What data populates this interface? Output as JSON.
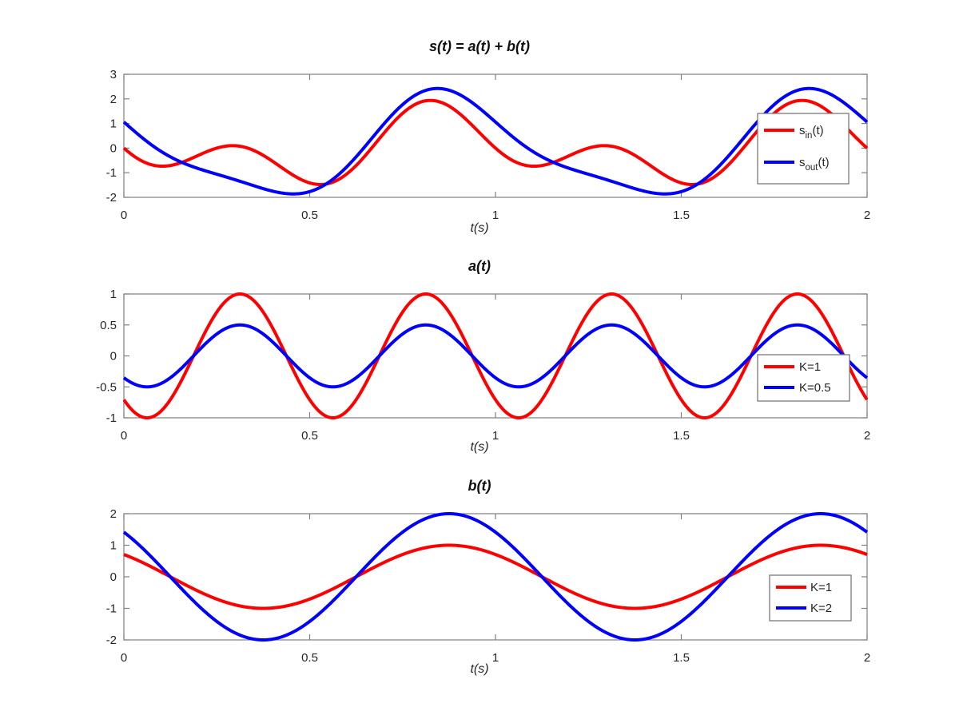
{
  "figure": {
    "background": "#ffffff",
    "kind": "matlab-style-figure",
    "subplot_count": 3
  },
  "styles": {
    "axis_color": "#808080",
    "tick_label_color": "#262626",
    "title_color": "#111111",
    "legend_border_color": "#7a7a7a",
    "legend_background": "#ffffff",
    "series_red": "#ff0000",
    "series_blue": "#0000ff"
  },
  "chart_data": [
    {
      "type": "line",
      "title": "s(t) = a(t) + b(t)",
      "xlabel": "t(s)",
      "ylabel": "",
      "xlim": [
        0,
        2
      ],
      "ylim": [
        -2,
        3
      ],
      "xticks": [
        0,
        0.5,
        1,
        1.5,
        2
      ],
      "xtick_labels": [
        "0",
        "0.5",
        "1",
        "1.5",
        "2"
      ],
      "yticks": [
        -2,
        -1,
        0,
        1,
        2,
        3
      ],
      "ytick_labels": [
        "-2",
        "-1",
        "0",
        "1",
        "2",
        "3"
      ],
      "grid": false,
      "legend_position": "right-middle-inside",
      "series": [
        {
          "name": "s_in(t)",
          "label_parts": [
            {
              "text": "s"
            },
            {
              "sub": "in"
            },
            {
              "text": "(t)"
            }
          ],
          "color": "#ff0000",
          "line_width": 4,
          "description": "sin(4*pi*t - 3*pi/4) + sin(2*pi*t + 3*pi/4)",
          "components": [
            {
              "amplitude": 1,
              "frequency_hz": 2,
              "phase_rad": -2.35619449
            },
            {
              "amplitude": 1,
              "frequency_hz": 1,
              "phase_rad": 2.35619449
            }
          ]
        },
        {
          "name": "s_out(t)",
          "label_parts": [
            {
              "text": "s"
            },
            {
              "sub": "out"
            },
            {
              "text": "(t)"
            }
          ],
          "color": "#0000ff",
          "line_width": 4,
          "description": "0.5*sin(4*pi*t - 3*pi/4) + 2*sin(2*pi*t + 3*pi/4)",
          "components": [
            {
              "amplitude": 0.5,
              "frequency_hz": 2,
              "phase_rad": -2.35619449
            },
            {
              "amplitude": 2,
              "frequency_hz": 1,
              "phase_rad": 2.35619449
            }
          ]
        }
      ]
    },
    {
      "type": "line",
      "title": "a(t)",
      "xlabel": "t(s)",
      "ylabel": "",
      "xlim": [
        0,
        2
      ],
      "ylim": [
        -1,
        1
      ],
      "xticks": [
        0,
        0.5,
        1,
        1.5,
        2
      ],
      "xtick_labels": [
        "0",
        "0.5",
        "1",
        "1.5",
        "2"
      ],
      "yticks": [
        -1,
        -0.5,
        0,
        0.5,
        1
      ],
      "ytick_labels": [
        "-1",
        "-0.5",
        "0",
        "0.5",
        "1"
      ],
      "grid": false,
      "legend_position": "right-middle-inside",
      "series": [
        {
          "name": "K=1",
          "label_parts": [
            {
              "text": "K=1"
            }
          ],
          "color": "#ff0000",
          "line_width": 4,
          "description": "1*sin(4*pi*t - 3*pi/4)",
          "components": [
            {
              "amplitude": 1,
              "frequency_hz": 2,
              "phase_rad": -2.35619449
            }
          ]
        },
        {
          "name": "K=0.5",
          "label_parts": [
            {
              "text": "K=0.5"
            }
          ],
          "color": "#0000ff",
          "line_width": 4,
          "description": "0.5*sin(4*pi*t - 3*pi/4)",
          "components": [
            {
              "amplitude": 0.5,
              "frequency_hz": 2,
              "phase_rad": -2.35619449
            }
          ]
        }
      ]
    },
    {
      "type": "line",
      "title": "b(t)",
      "xlabel": "t(s)",
      "ylabel": "",
      "xlim": [
        0,
        2
      ],
      "ylim": [
        -2,
        2
      ],
      "xticks": [
        0,
        0.5,
        1,
        1.5,
        2
      ],
      "xtick_labels": [
        "0",
        "0.5",
        "1",
        "1.5",
        "2"
      ],
      "yticks": [
        -2,
        -1,
        0,
        1,
        2
      ],
      "ytick_labels": [
        "-2",
        "-1",
        "0",
        "1",
        "2"
      ],
      "grid": false,
      "legend_position": "right-middle-inside",
      "series": [
        {
          "name": "K=1",
          "label_parts": [
            {
              "text": "K=1"
            }
          ],
          "color": "#ff0000",
          "line_width": 4,
          "description": "1*sin(2*pi*t + 3*pi/4)",
          "components": [
            {
              "amplitude": 1,
              "frequency_hz": 1,
              "phase_rad": 2.35619449
            }
          ]
        },
        {
          "name": "K=2",
          "label_parts": [
            {
              "text": "K=2"
            }
          ],
          "color": "#0000ff",
          "line_width": 4,
          "description": "2*sin(2*pi*t + 3*pi/4)",
          "components": [
            {
              "amplitude": 2,
              "frequency_hz": 1,
              "phase_rad": 2.35619449
            }
          ]
        }
      ]
    }
  ]
}
